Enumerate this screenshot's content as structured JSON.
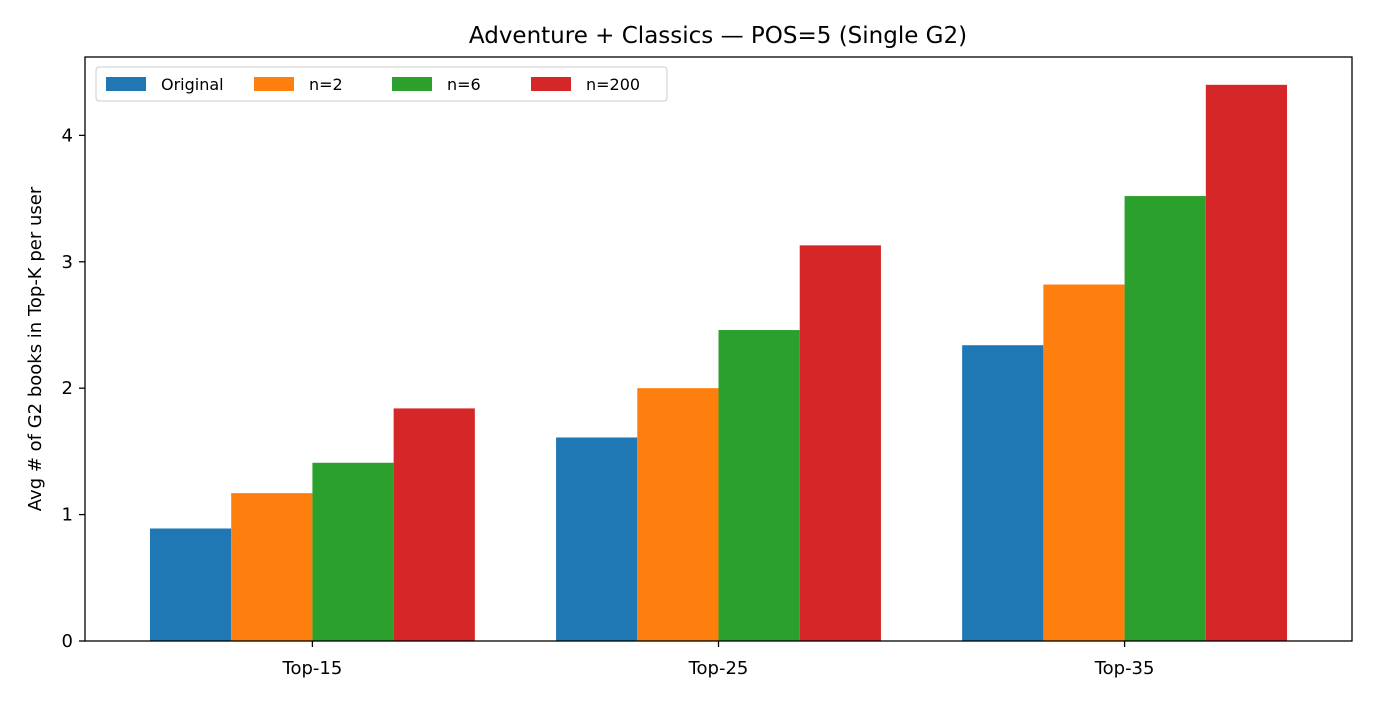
{
  "chart_data": {
    "type": "bar",
    "title": "Adventure + Classics — POS=5 (Single G2)",
    "xlabel": "",
    "ylabel": "Avg # of G2 books in Top-K per user",
    "categories": [
      "Top-15",
      "Top-25",
      "Top-35"
    ],
    "series": [
      {
        "name": "Original",
        "color": "#1f77b4",
        "values": [
          0.89,
          1.61,
          2.34
        ]
      },
      {
        "name": "n=2",
        "color": "#ff7f0e",
        "values": [
          1.17,
          2.0,
          2.82
        ]
      },
      {
        "name": "n=6",
        "color": "#2ca02c",
        "values": [
          1.41,
          2.46,
          3.52
        ]
      },
      {
        "name": "n=200",
        "color": "#d62728",
        "values": [
          1.84,
          3.13,
          4.4
        ]
      }
    ],
    "ylim": [
      0,
      4.62
    ],
    "yticks": [
      0,
      1,
      2,
      3,
      4
    ],
    "grid": false,
    "legend_position": "top-left"
  }
}
